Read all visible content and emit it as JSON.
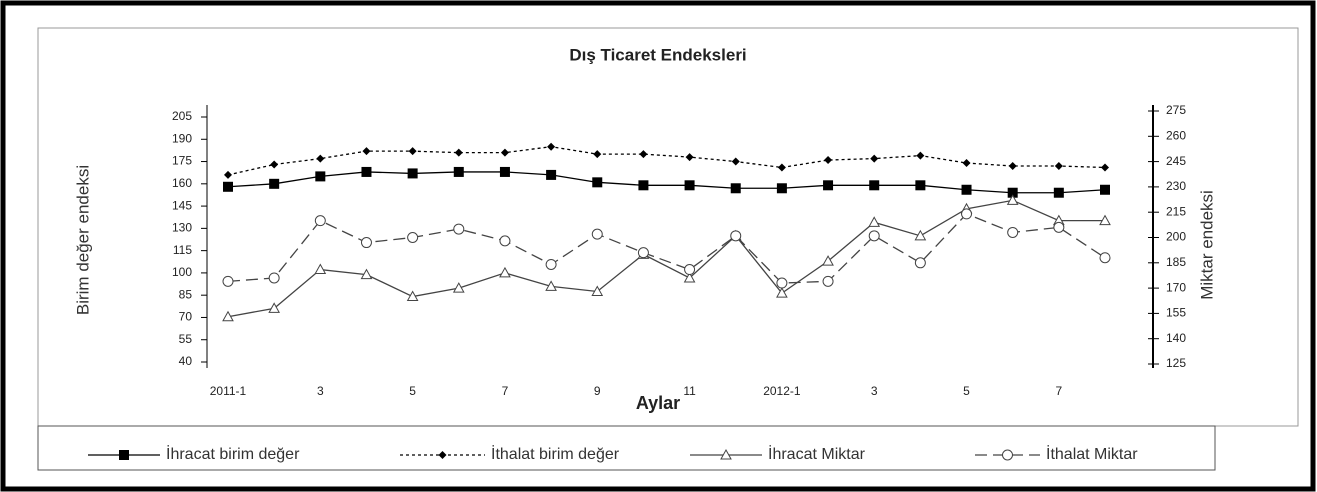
{
  "chart_data": {
    "type": "line",
    "title": "Dış Ticaret  Endeksleri",
    "x_label": "Aylar",
    "y_label": "Birim değer endeksi",
    "y2_label": "Miktar  endeksi",
    "categories": [
      "2011-1",
      null,
      "3",
      null,
      "5",
      null,
      "7",
      null,
      "9",
      null,
      "11",
      null,
      "2012-1",
      null,
      "3",
      null,
      "5",
      null,
      "7",
      null
    ],
    "ylim": [
      40,
      205
    ],
    "yticks": [
      40,
      55,
      70,
      85,
      100,
      115,
      130,
      145,
      160,
      175,
      190,
      205
    ],
    "y2lim": [
      125,
      275
    ],
    "y2ticks": [
      125,
      140,
      155,
      170,
      185,
      200,
      215,
      230,
      245,
      260,
      275
    ],
    "series": [
      {
        "name": "İhracat birim değer",
        "color": "#000000",
        "marker": "square",
        "dash": "solid",
        "values": [
          158,
          160,
          165,
          168,
          167,
          168,
          168,
          166,
          161,
          159,
          159,
          157,
          157,
          159,
          159,
          159,
          156,
          154,
          154,
          156
        ]
      },
      {
        "name": "İthalat birim değer",
        "color": "#000000",
        "marker": "diamond",
        "dash": "dotted",
        "values": [
          166,
          173,
          177,
          182,
          182,
          181,
          181,
          185,
          180,
          180,
          178,
          175,
          171,
          176,
          177,
          179,
          174,
          172,
          172,
          171
        ]
      },
      {
        "name": "İhracat Miktar",
        "color": "#444444",
        "marker": "triangle",
        "dash": "solid",
        "axis": "y2",
        "values": [
          153,
          158,
          181,
          178,
          165,
          170,
          179,
          171,
          168,
          190,
          176,
          201,
          167,
          186,
          209,
          201,
          217,
          222,
          210,
          210
        ]
      },
      {
        "name": "İthalat Miktar",
        "color": "#444444",
        "marker": "circle",
        "dash": "dashed",
        "axis": "y2",
        "values": [
          174,
          176,
          210,
          197,
          200,
          205,
          198,
          184,
          202,
          191,
          181,
          201,
          173,
          174,
          201,
          185,
          214,
          203,
          206,
          188
        ]
      }
    ]
  }
}
